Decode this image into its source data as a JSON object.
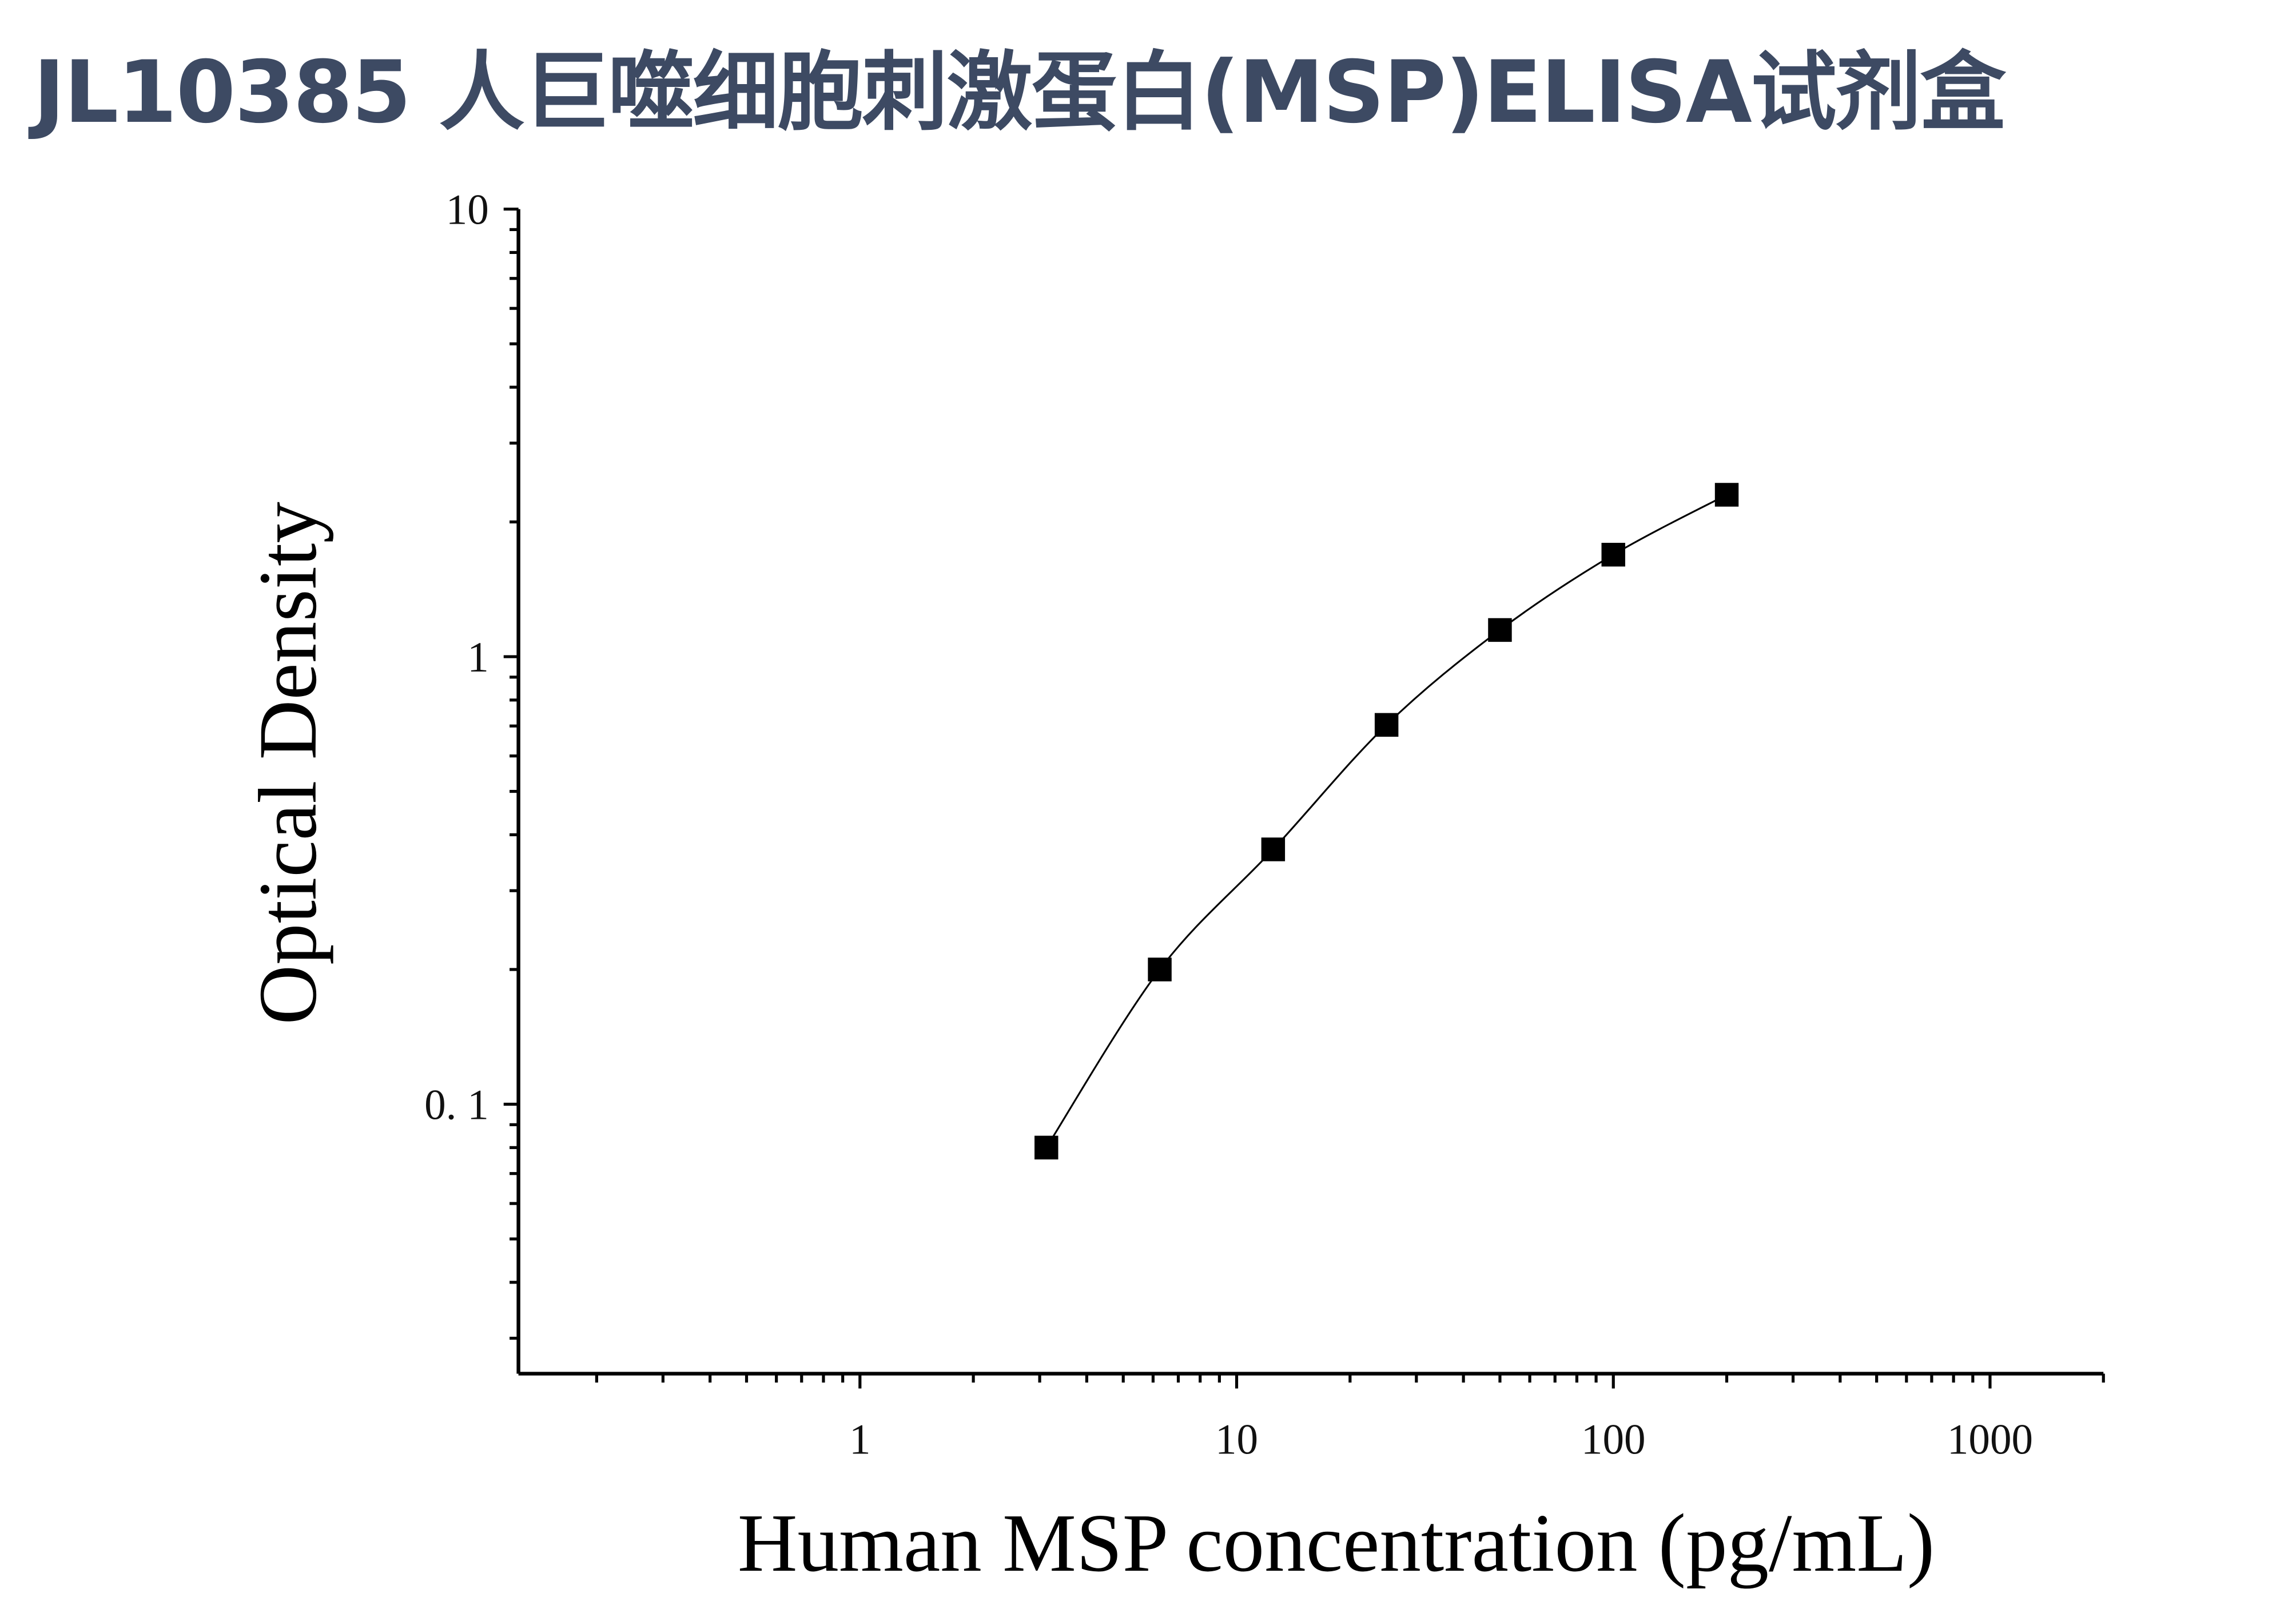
{
  "title": "JL10385 人巨噬细胞刺激蛋白(MSP)ELISA试剂盒",
  "chart_data": {
    "type": "scatter",
    "title": "JL10385 人巨噬细胞刺激蛋白(MSP)ELISA试剂盒",
    "xlabel": "Human MSP concentration (pg/mL)",
    "ylabel": "Optical Density",
    "xscale": "log",
    "yscale": "log",
    "xlim": [
      0.124,
      2000
    ],
    "ylim": [
      0.025,
      10
    ],
    "grid": false,
    "x_tick_labels": [
      "1",
      "10",
      "100",
      "1000"
    ],
    "y_tick_labels": [
      "10",
      "1",
      "0. 1"
    ],
    "x": [
      3.125,
      6.25,
      12.5,
      25,
      50,
      100,
      200
    ],
    "y": [
      0.08,
      0.2,
      0.371,
      0.704,
      1.147,
      1.69,
      2.3
    ],
    "marker": "square",
    "fit_line": true,
    "colors": {
      "title": "#3d4a63",
      "marks": "#000000"
    }
  }
}
